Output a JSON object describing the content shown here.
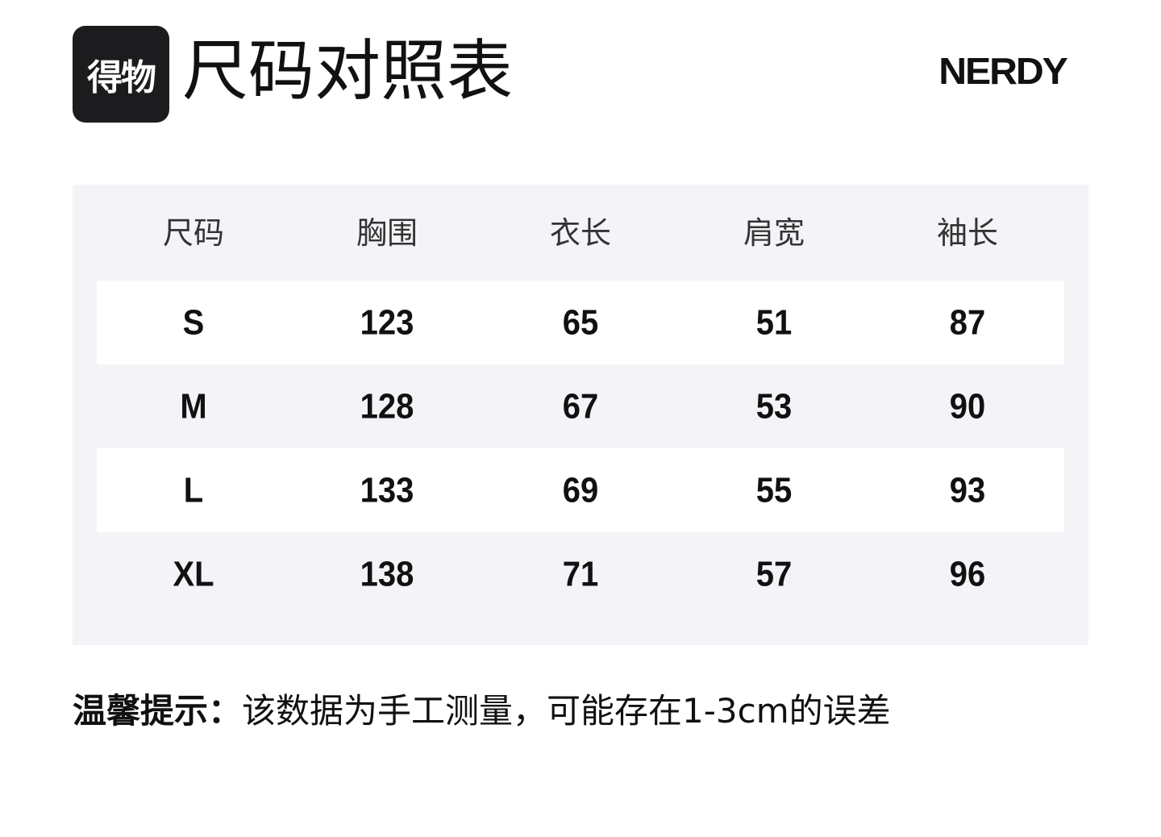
{
  "header": {
    "logo_text": "得物",
    "title": "尺码对照表",
    "brand": "NERDY"
  },
  "table": {
    "columns": [
      "尺码",
      "胸围",
      "衣长",
      "肩宽",
      "袖长"
    ],
    "rows": [
      [
        "S",
        "123",
        "65",
        "51",
        "87"
      ],
      [
        "M",
        "128",
        "67",
        "53",
        "90"
      ],
      [
        "L",
        "133",
        "69",
        "55",
        "93"
      ],
      [
        "XL",
        "138",
        "71",
        "57",
        "96"
      ]
    ]
  },
  "note": {
    "label": "温馨提示：",
    "text": "该数据为手工测量，可能存在1-3cm的误差"
  }
}
